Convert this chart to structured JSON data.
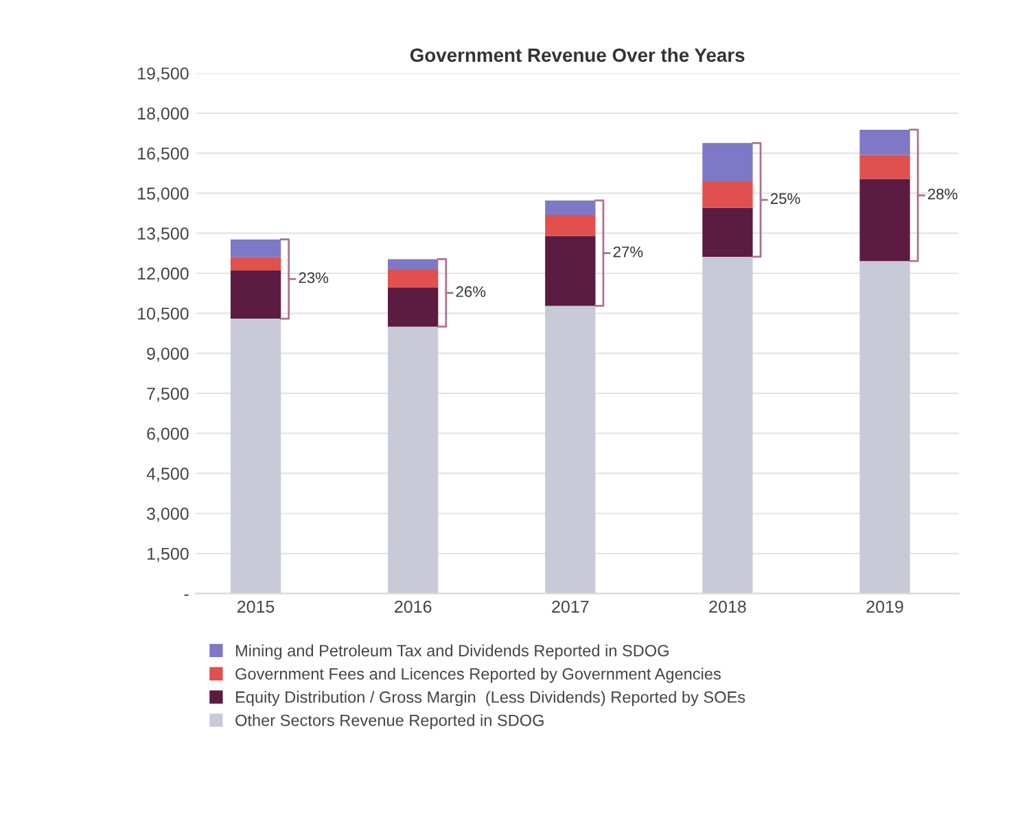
{
  "chart_data": {
    "type": "bar",
    "title": "Government Revenue Over the Years",
    "categories": [
      "2015",
      "2016",
      "2017",
      "2018",
      "2019"
    ],
    "stacked": true,
    "series": [
      {
        "name": "Other Sectors Revenue Reported in SDOG",
        "color": "#c9cad8",
        "values": [
          10300,
          10000,
          10780,
          12620,
          12460
        ]
      },
      {
        "name": "Equity Distribution / Gross Margin  (Less Dividends) Reported by SOEs",
        "color": "#5c1b40",
        "values": [
          1800,
          1460,
          2620,
          1840,
          3080
        ]
      },
      {
        "name": "Government Fees and Licences Reported by Government Agencies",
        "color": "#e0504e",
        "values": [
          500,
          670,
          790,
          960,
          900
        ]
      },
      {
        "name": "Mining and Petroleum Tax and Dividends Reported in SDOG",
        "color": "#7f78c6",
        "values": [
          670,
          400,
          540,
          1460,
          940
        ]
      }
    ],
    "ylim": [
      0,
      19500
    ],
    "yticks": [
      {
        "value": 0,
        "label": "-"
      },
      {
        "value": 1500,
        "label": "1,500"
      },
      {
        "value": 3000,
        "label": "3,000"
      },
      {
        "value": 4500,
        "label": "4,500"
      },
      {
        "value": 6000,
        "label": "6,000"
      },
      {
        "value": 7500,
        "label": "7,500"
      },
      {
        "value": 9000,
        "label": "9,000"
      },
      {
        "value": 10500,
        "label": "10,500"
      },
      {
        "value": 12000,
        "label": "12,000"
      },
      {
        "value": 13500,
        "label": "13,500"
      },
      {
        "value": 15000,
        "label": "15,000"
      },
      {
        "value": 16500,
        "label": "16,500"
      },
      {
        "value": 18000,
        "label": "18,000"
      },
      {
        "value": 19500,
        "label": "19,500"
      }
    ],
    "grid": "y",
    "legend": "bottom",
    "annotations": [
      "23%",
      "26%",
      "27%",
      "25%",
      "28%"
    ]
  }
}
